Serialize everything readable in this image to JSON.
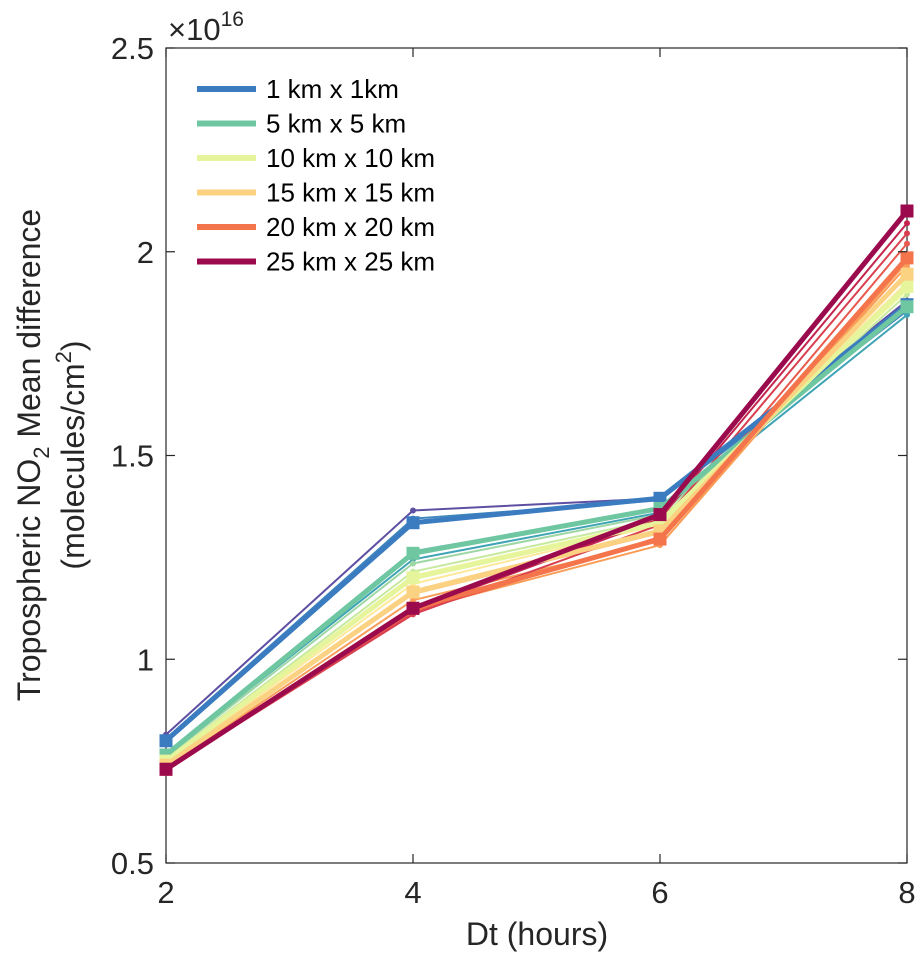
{
  "chart_data": {
    "type": "line",
    "title": "",
    "xlabel": "Dt (hours)",
    "ylabel": {
      "line1_part1": "Tropospheric NO",
      "line1_sub": "2",
      "line1_part2": " Mean difference",
      "line2_part1": "(molecules/cm",
      "line2_sup": "2",
      "line2_part2": ")"
    },
    "y_multiplier": {
      "base": "×10",
      "exponent": "16"
    },
    "x": [
      2,
      4,
      6,
      8
    ],
    "xlim": [
      2,
      8
    ],
    "ylim": [
      0.5,
      2.5
    ],
    "x_ticks": [
      "2",
      "4",
      "6",
      "8"
    ],
    "y_ticks": [
      {
        "value": 0.5,
        "label": "0.5"
      },
      {
        "value": 1,
        "label": "1"
      },
      {
        "value": 1.5,
        "label": "1.5"
      },
      {
        "value": 2,
        "label": "2"
      },
      {
        "value": 2.5,
        "label": "2.5"
      }
    ],
    "grid": false,
    "legend_position": "top-left",
    "series": [
      {
        "name": "1 km x 1km",
        "color": "#3b7cc0",
        "values": [
          0.8,
          1.335,
          1.395,
          1.87
        ]
      },
      {
        "name": "5 km x 5 km",
        "color": "#6fc7a2",
        "values": [
          0.765,
          1.26,
          1.37,
          1.865
        ]
      },
      {
        "name": "10 km x 10 km",
        "color": "#e6f59c",
        "values": [
          0.75,
          1.2,
          1.335,
          1.915
        ]
      },
      {
        "name": "15 km x 15 km",
        "color": "#fbd182",
        "values": [
          0.74,
          1.165,
          1.315,
          1.945
        ]
      },
      {
        "name": "20 km x 20 km",
        "color": "#f4744c",
        "values": [
          0.73,
          1.125,
          1.295,
          1.985
        ]
      },
      {
        "name": "25 km x 25 km",
        "color": "#9b0a4c",
        "values": [
          0.73,
          1.125,
          1.355,
          2.1
        ]
      }
    ],
    "thin_series": [
      {
        "color": "#5e4fa2",
        "values": [
          0.815,
          1.365,
          1.395,
          1.88
        ]
      },
      {
        "color": "#3f86bd",
        "values": [
          0.805,
          1.345,
          1.39,
          1.855
        ]
      },
      {
        "color": "#58b4ab",
        "values": [
          0.77,
          1.265,
          1.37,
          1.86
        ]
      },
      {
        "color": "#3fa4b5",
        "values": [
          0.765,
          1.245,
          1.36,
          1.845
        ]
      },
      {
        "color": "#9ed7a4",
        "values": [
          0.76,
          1.235,
          1.355,
          1.875
        ]
      },
      {
        "color": "#c7e9a0",
        "values": [
          0.755,
          1.215,
          1.345,
          1.895
        ]
      },
      {
        "color": "#f3f9a6",
        "values": [
          0.75,
          1.205,
          1.34,
          1.905
        ]
      },
      {
        "color": "#fee99a",
        "values": [
          0.745,
          1.185,
          1.33,
          1.925
        ]
      },
      {
        "color": "#fdbf6f",
        "values": [
          0.74,
          1.16,
          1.31,
          1.95
        ]
      },
      {
        "color": "#f99d5a",
        "values": [
          0.735,
          1.145,
          1.29,
          1.965
        ]
      },
      {
        "color": "#fa9c55",
        "values": [
          0.73,
          1.12,
          1.28,
          1.975
        ]
      },
      {
        "color": "#e8594e",
        "values": [
          0.73,
          1.115,
          1.3,
          2.02
        ]
      },
      {
        "color": "#d8404f",
        "values": [
          0.73,
          1.11,
          1.33,
          2.045
        ]
      },
      {
        "color": "#c3254e",
        "values": [
          0.73,
          1.12,
          1.345,
          2.07
        ]
      }
    ]
  }
}
